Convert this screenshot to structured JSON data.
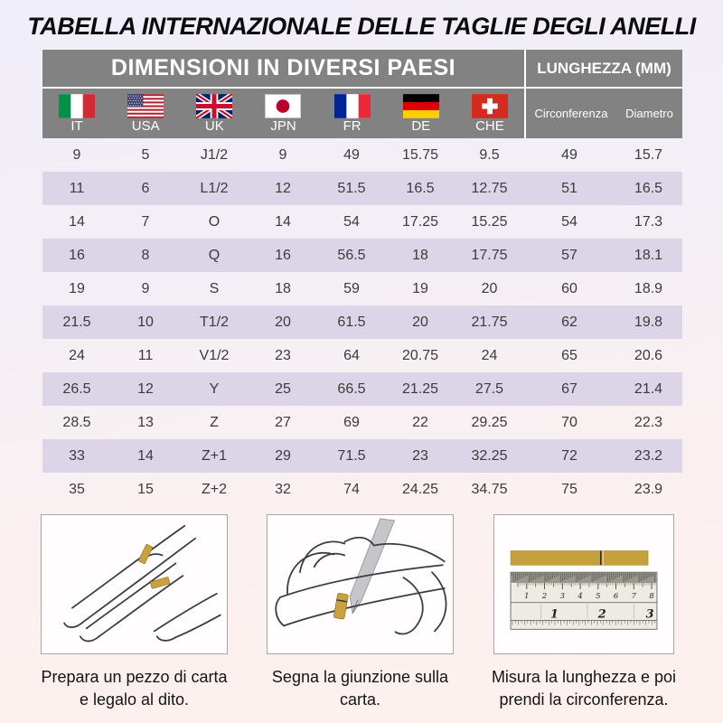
{
  "title": "TABELLA INTERNAZIONALE DELLE TAGLIE DEGLI ANELLI",
  "table": {
    "header": {
      "dimensions": "DIMENSIONI IN DIVERSI PAESI",
      "length": "LUNGHEZZA (MM)"
    },
    "countries": [
      "IT",
      "USA",
      "UK",
      "JPN",
      "FR",
      "DE",
      "CHE"
    ],
    "length_columns": [
      "Circonferenza",
      "Diametro"
    ],
    "columns": [
      "IT",
      "USA",
      "UK",
      "JPN",
      "FR",
      "DE",
      "CHE",
      "Circonferenza",
      "Diametro"
    ],
    "rows": [
      [
        "9",
        "5",
        "J1/2",
        "9",
        "49",
        "15.75",
        "9.5",
        "49",
        "15.7"
      ],
      [
        "11",
        "6",
        "L1/2",
        "12",
        "51.5",
        "16.5",
        "12.75",
        "51",
        "16.5"
      ],
      [
        "14",
        "7",
        "O",
        "14",
        "54",
        "17.25",
        "15.25",
        "54",
        "17.3"
      ],
      [
        "16",
        "8",
        "Q",
        "16",
        "56.5",
        "18",
        "17.75",
        "57",
        "18.1"
      ],
      [
        "19",
        "9",
        "S",
        "18",
        "59",
        "19",
        "20",
        "60",
        "18.9"
      ],
      [
        "21.5",
        "10",
        "T1/2",
        "20",
        "61.5",
        "20",
        "21.75",
        "62",
        "19.8"
      ],
      [
        "24",
        "11",
        "V1/2",
        "23",
        "64",
        "20.75",
        "24",
        "65",
        "20.6"
      ],
      [
        "26.5",
        "12",
        "Y",
        "25",
        "66.5",
        "21.25",
        "27.5",
        "67",
        "21.4"
      ],
      [
        "28.5",
        "13",
        "Z",
        "27",
        "69",
        "22",
        "29.25",
        "70",
        "22.3"
      ],
      [
        "33",
        "14",
        "Z+1",
        "29",
        "71.5",
        "23",
        "32.25",
        "72",
        "23.2"
      ],
      [
        "35",
        "15",
        "Z+2",
        "32",
        "74",
        "24.25",
        "34.75",
        "75",
        "23.9"
      ]
    ]
  },
  "instructions": [
    {
      "caption": "Prepara un pezzo di carta e legalo al dito."
    },
    {
      "caption": "Segna la giunzione sulla carta."
    },
    {
      "caption": "Misura la lunghezza e poi prendi la circonferenza."
    }
  ],
  "ruler": {
    "cm_numbers": [
      "1",
      "2",
      "3",
      "4",
      "5",
      "6",
      "7",
      "8"
    ],
    "inch_numbers": [
      "1",
      "2",
      "3"
    ]
  },
  "icons": {
    "flags": [
      "italy-flag-icon",
      "usa-flag-icon",
      "uk-flag-icon",
      "japan-flag-icon",
      "france-flag-icon",
      "germany-flag-icon",
      "switzerland-flag-icon"
    ],
    "illustrations": [
      "hand-with-paper-strip-icon",
      "hand-marking-with-pen-icon",
      "ruler-icon"
    ]
  },
  "colors": {
    "header_bg": "#828282",
    "header_text": "#ffffff",
    "stripe": "#dbd5e7",
    "divider": "#ffffff",
    "body_text": "#3b3b3b",
    "gold_strip": "#c6a03c",
    "bg_top": "#f0eef9",
    "bg_bottom": "#fdf1ee"
  }
}
